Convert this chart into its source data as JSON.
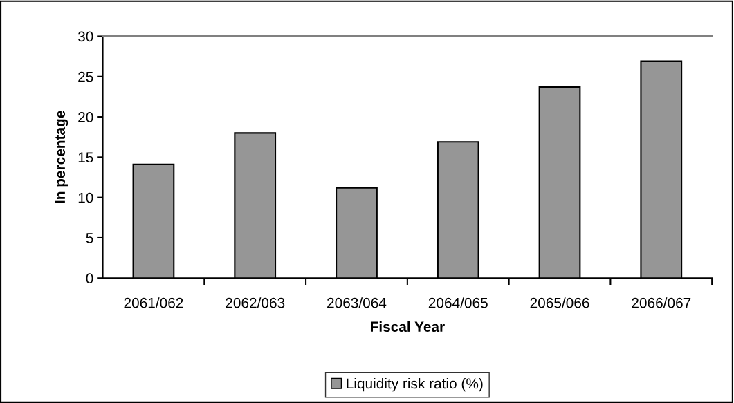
{
  "chart_data": {
    "type": "bar",
    "xlabel": "Fiscal Year",
    "ylabel": "In percentage",
    "categories": [
      "2061/062",
      "2062/063",
      "2063/064",
      "2064/065",
      "2065/066",
      "2066/067"
    ],
    "series": [
      {
        "name": "Liquidity risk ratio (%)",
        "color": "#969696",
        "values": [
          14.1,
          18.0,
          11.2,
          16.9,
          23.7,
          26.9
        ]
      }
    ],
    "ylim": [
      0,
      30
    ],
    "yticks": [
      0,
      5,
      10,
      15,
      20,
      25,
      30
    ],
    "grid": false,
    "legend": "bottom"
  }
}
